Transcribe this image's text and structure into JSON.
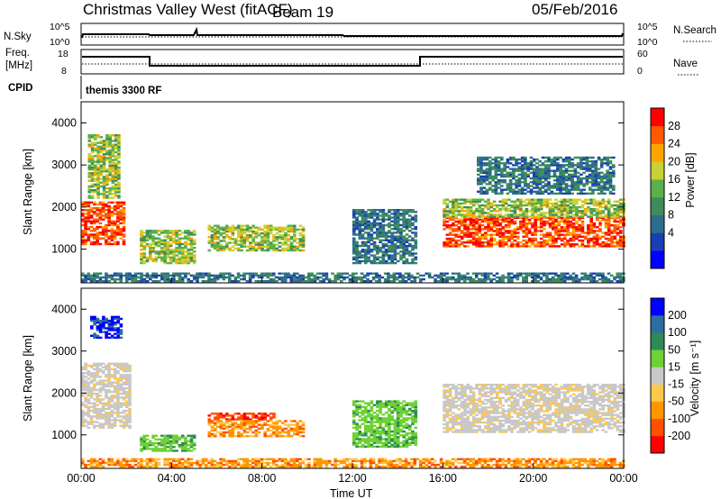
{
  "header": {
    "title": "Christmas Valley West (fitACF)",
    "beam": "Beam 19",
    "date": "05/Feb/2016"
  },
  "top_panels": {
    "nsky_label": "N.Sky",
    "nsky_ticks": [
      "10^5",
      "10^0"
    ],
    "nsearch_label": "N.Search",
    "nsearch_ticks": [
      "10^5",
      "10^0"
    ],
    "freq_label_line1": "Freq.",
    "freq_label_line2": "[MHz]",
    "freq_ticks": [
      "18",
      "8"
    ],
    "nave_label": "Nave",
    "nave_ticks": [
      "60",
      "0"
    ],
    "cpid_label": "CPID",
    "cpid_value": "themis 3300 RF"
  },
  "chart_data": [
    {
      "type": "heatmap",
      "name": "power",
      "ylabel": "Slant Range [km]",
      "yticks": [
        "4000",
        "3000",
        "2000",
        "1000"
      ],
      "ylim": [
        200,
        4500
      ],
      "xlim_hours": [
        0,
        24
      ],
      "xticks": [
        "00:00",
        "04:00",
        "08:00",
        "12:00",
        "16:00",
        "20:00",
        "00:00"
      ],
      "colorbar": {
        "label": "Power [dB]",
        "ticks": [
          "28",
          "24",
          "20",
          "16",
          "12",
          "8",
          "4"
        ],
        "colors": [
          "#0000ff",
          "#1a3fb3",
          "#2e6d8c",
          "#3e8c5a",
          "#5ab04a",
          "#c8d232",
          "#ffa500",
          "#ff5a00",
          "#ff0000"
        ]
      },
      "regions": [
        {
          "t0": 0.0,
          "t1": 1.9,
          "r0": 1100,
          "r1": 2100,
          "level": "high"
        },
        {
          "t0": 0.3,
          "t1": 1.7,
          "r0": 2200,
          "r1": 3700,
          "level": "mid"
        },
        {
          "t0": 2.6,
          "t1": 5.0,
          "r0": 650,
          "r1": 1450,
          "level": "mid"
        },
        {
          "t0": 5.6,
          "t1": 9.8,
          "r0": 950,
          "r1": 1550,
          "level": "mid"
        },
        {
          "t0": 12.0,
          "t1": 14.8,
          "r0": 650,
          "r1": 1950,
          "level": "low"
        },
        {
          "t0": 16.0,
          "t1": 24.0,
          "r0": 1050,
          "r1": 1750,
          "level": "high"
        },
        {
          "t0": 16.0,
          "t1": 24.0,
          "r0": 1750,
          "r1": 2200,
          "level": "mid"
        },
        {
          "t0": 17.5,
          "t1": 23.5,
          "r0": 2300,
          "r1": 3200,
          "level": "low"
        },
        {
          "t0": 0.0,
          "t1": 24.0,
          "r0": 220,
          "r1": 420,
          "level": "low"
        }
      ]
    },
    {
      "type": "heatmap",
      "name": "velocity",
      "ylabel": "Slant Range [km]",
      "yticks": [
        "4000",
        "3000",
        "2000",
        "1000"
      ],
      "ylim": [
        200,
        4500
      ],
      "xlim_hours": [
        0,
        24
      ],
      "xlabel": "Time UT",
      "xticks": [
        "00:00",
        "04:00",
        "08:00",
        "12:00",
        "16:00",
        "20:00",
        "00:00"
      ],
      "colorbar": {
        "label": "Velocity [m s⁻¹]",
        "ticks": [
          "200",
          "100",
          "50",
          "15",
          "-15",
          "-50",
          "-100",
          "-200"
        ],
        "colors": [
          "#ff0000",
          "#ff5000",
          "#ff9600",
          "#ffc84b",
          "#c8c8c8",
          "#6ed232",
          "#2e8b57",
          "#2e6da0",
          "#0000ff"
        ]
      },
      "regions": [
        {
          "t0": 0.0,
          "t1": 2.2,
          "r0": 1150,
          "r1": 2700,
          "level": "grey"
        },
        {
          "t0": 0.4,
          "t1": 1.8,
          "r0": 3300,
          "r1": 3800,
          "level": "blue"
        },
        {
          "t0": 2.6,
          "t1": 5.0,
          "r0": 600,
          "r1": 1000,
          "level": "green"
        },
        {
          "t0": 5.6,
          "t1": 8.5,
          "r0": 1350,
          "r1": 1500,
          "level": "red"
        },
        {
          "t0": 5.6,
          "t1": 9.8,
          "r0": 950,
          "r1": 1350,
          "level": "orange"
        },
        {
          "t0": 12.0,
          "t1": 14.8,
          "r0": 700,
          "r1": 1800,
          "level": "green"
        },
        {
          "t0": 16.0,
          "t1": 24.0,
          "r0": 1050,
          "r1": 2200,
          "level": "grey"
        },
        {
          "t0": 0.0,
          "t1": 24.0,
          "r0": 220,
          "r1": 420,
          "level": "orange"
        }
      ]
    }
  ]
}
